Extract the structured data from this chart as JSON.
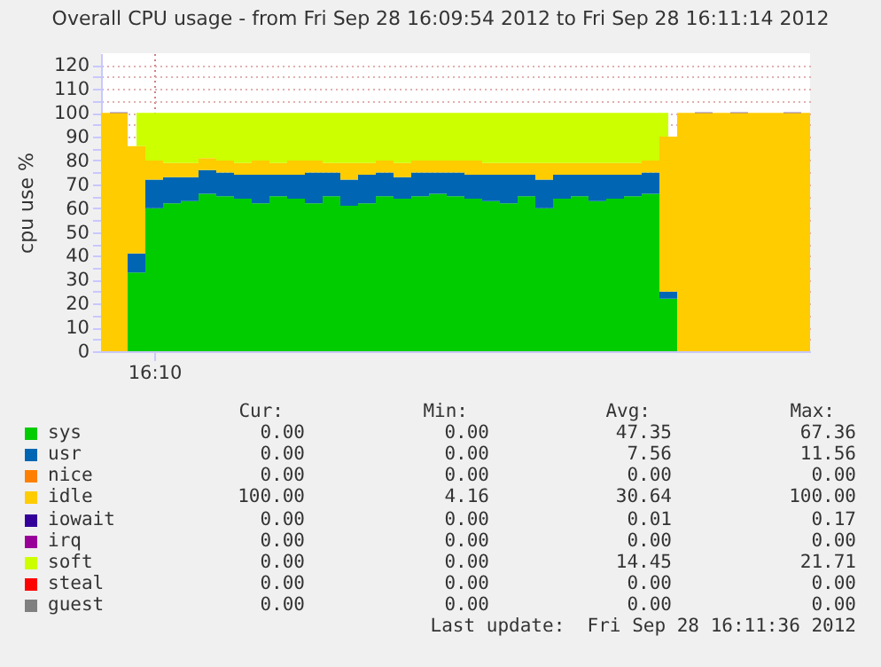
{
  "chart_data": {
    "type": "area",
    "stacked": true,
    "title": "Overall CPU usage - from Fri Sep 28 16:09:54 2012 to Fri Sep 28 16:11:14 2012",
    "ylabel": "cpu use %",
    "categories": [
      null,
      null,
      null,
      "16:10",
      null,
      null,
      null,
      null,
      null,
      null,
      null,
      null,
      null,
      null,
      null,
      null,
      null,
      null,
      null,
      null,
      null,
      null,
      null,
      null,
      null,
      null,
      null,
      null,
      null,
      null,
      null,
      null,
      null,
      null,
      null,
      null,
      null,
      null,
      null,
      null,
      null
    ],
    "series": [
      {
        "name": "sys",
        "color": "#00cc00",
        "values": [
          0,
          0,
          33,
          60,
          62,
          63,
          66,
          65,
          64,
          62,
          65,
          64,
          62,
          65,
          61,
          62,
          65,
          64,
          65,
          66,
          65,
          64,
          63,
          62,
          65,
          60,
          64,
          65,
          63,
          64,
          65,
          66,
          22,
          0,
          0,
          0,
          0,
          0,
          0,
          0,
          0
        ]
      },
      {
        "name": "usr",
        "color": "#0066b3",
        "values": [
          0,
          0,
          8,
          12,
          11,
          10,
          10,
          10,
          10,
          12,
          9,
          10,
          13,
          10,
          11,
          12,
          10,
          9,
          10,
          9,
          10,
          10,
          11,
          12,
          9,
          12,
          10,
          9,
          11,
          10,
          9,
          9,
          3,
          0,
          0,
          0,
          0,
          0,
          0,
          0,
          0
        ]
      },
      {
        "name": "nice",
        "color": "#ff8000",
        "values": [
          null,
          null,
          null,
          null,
          null,
          null,
          null,
          null,
          null,
          null,
          null,
          null,
          null,
          null,
          null,
          null,
          null,
          null,
          null,
          null,
          null,
          null,
          null,
          null,
          null,
          null,
          null,
          null,
          null,
          null,
          null,
          null,
          null,
          null,
          null,
          null,
          null,
          null,
          null,
          null,
          null
        ]
      },
      {
        "name": "idle",
        "color": "#ffcc00",
        "values": [
          100,
          100,
          45,
          8,
          6,
          6,
          5,
          5,
          5,
          6,
          5,
          6,
          5,
          4,
          7,
          5,
          5,
          6,
          5,
          5,
          5,
          6,
          5,
          5,
          5,
          7,
          5,
          5,
          5,
          5,
          5,
          5,
          65,
          100,
          100,
          100,
          100,
          100,
          100,
          100,
          100
        ]
      },
      {
        "name": "iowait",
        "color": "#330099",
        "values": [
          0,
          0.17,
          0,
          0,
          0,
          0,
          0,
          0,
          0,
          0,
          0,
          0,
          0,
          0,
          0,
          0,
          0,
          0,
          0,
          0,
          0,
          0,
          0,
          0,
          0,
          0,
          0,
          0,
          0,
          0,
          0,
          0,
          0,
          0,
          0.17,
          0,
          0.17,
          0,
          0,
          0.17,
          0
        ]
      },
      {
        "name": "irq",
        "color": "#990099",
        "values": [
          null,
          null,
          null,
          null,
          null,
          null,
          null,
          null,
          null,
          null,
          null,
          null,
          null,
          null,
          null,
          null,
          null,
          null,
          null,
          null,
          null,
          null,
          null,
          null,
          null,
          null,
          null,
          null,
          null,
          null,
          null,
          null,
          null,
          null,
          null,
          null,
          null,
          null,
          null,
          null,
          null
        ]
      },
      {
        "name": "soft",
        "color": "#ccff00",
        "values": [
          null,
          null,
          14,
          20,
          21,
          21,
          19,
          20,
          21,
          20,
          21,
          20,
          20,
          21,
          21,
          21,
          20,
          21,
          20,
          20,
          20,
          20,
          21,
          21,
          21,
          21,
          21,
          21,
          21,
          21,
          21,
          20,
          10,
          null,
          null,
          null,
          null,
          null,
          null,
          null,
          null
        ]
      },
      {
        "name": "steal",
        "color": "#ff0000",
        "values": [
          null,
          null,
          null,
          null,
          null,
          null,
          null,
          null,
          null,
          null,
          null,
          null,
          null,
          null,
          null,
          null,
          null,
          null,
          null,
          null,
          null,
          null,
          null,
          null,
          null,
          null,
          null,
          null,
          null,
          null,
          null,
          null,
          null,
          null,
          null,
          null,
          null,
          null,
          null,
          null,
          null
        ]
      },
      {
        "name": "guest",
        "color": "#808080",
        "values": [
          null,
          null,
          null,
          null,
          null,
          null,
          null,
          null,
          null,
          null,
          null,
          null,
          null,
          null,
          null,
          null,
          null,
          null,
          null,
          null,
          null,
          null,
          null,
          null,
          null,
          null,
          null,
          null,
          null,
          null,
          null,
          null,
          null,
          null,
          null,
          null,
          null,
          null,
          null,
          null,
          null
        ]
      }
    ],
    "ylim": [
      0,
      125
    ],
    "yticks": [
      0,
      {
        "value": 5,
        "label": null
      },
      10,
      {
        "value": 15,
        "label": null
      },
      20,
      {
        "value": 25,
        "label": null
      },
      30,
      {
        "value": 35,
        "label": null
      },
      40,
      {
        "value": 45,
        "label": null
      },
      50,
      {
        "value": 55,
        "label": null
      },
      60,
      {
        "value": 65,
        "label": null
      },
      70,
      {
        "value": 75,
        "label": null
      },
      80,
      {
        "value": 85,
        "label": null
      },
      90,
      {
        "value": 95,
        "label": null
      },
      100,
      {
        "value": 105,
        "label": null
      },
      110,
      {
        "value": 115,
        "label": null
      },
      120
    ],
    "grid": true,
    "legend": "bottom",
    "annotations": [
      "Cur:",
      "Min:",
      "Avg:",
      "Max:",
      "0.00",
      "0.00",
      "47.35",
      "67.36",
      "0.00",
      "0.00",
      "7.56",
      "11.56",
      "0.00",
      "0.00",
      "0.00",
      "0.00",
      "100.00",
      "4.16",
      "30.64",
      "100.00",
      "0.00",
      "0.00",
      "0.01",
      "0.17",
      "0.00",
      "0.00",
      "0.00",
      "0.00",
      "0.00",
      "0.00",
      "14.45",
      "21.71",
      "0.00",
      "0.00",
      "0.00",
      "0.00",
      "0.00",
      "0.00",
      "0.00",
      "0.00",
      "Last update:  Fri Sep 28 16:11:36 2012"
    ]
  }
}
